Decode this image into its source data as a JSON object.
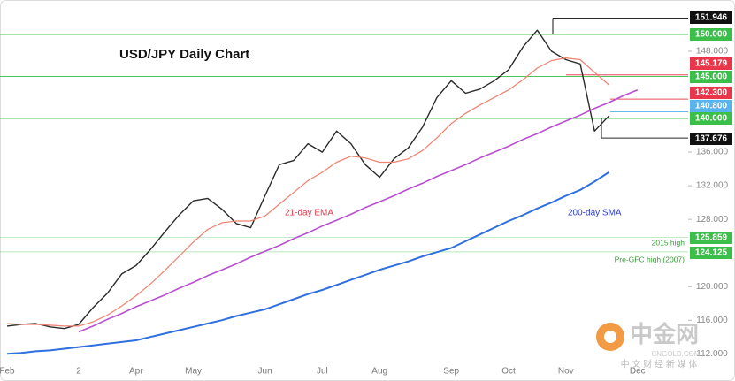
{
  "chart_data": {
    "type": "line",
    "title": "USD/JPY Daily Chart",
    "categories": [
      "Feb",
      null,
      null,
      null,
      null,
      "2",
      null,
      null,
      null,
      "Apr",
      null,
      null,
      null,
      "May",
      null,
      null,
      null,
      null,
      "Jun",
      null,
      null,
      null,
      "Jul",
      null,
      null,
      null,
      "Aug",
      null,
      null,
      null,
      null,
      "Sep",
      null,
      null,
      null,
      "Oct",
      null,
      null,
      null,
      "Nov",
      null,
      null,
      null,
      null,
      "Dec"
    ],
    "series": [
      {
        "name": "USD/JPY",
        "color": "#2b2b2b",
        "values": [
          115.3,
          115.5,
          115.6,
          115.2,
          115.0,
          115.5,
          117.5,
          119.2,
          121.5,
          122.5,
          124.4,
          126.5,
          128.5,
          130.2,
          130.5,
          129.2,
          127.5,
          127.0,
          130.8,
          134.5,
          135.0,
          137.0,
          136.0,
          138.5,
          137.0,
          134.5,
          133.0,
          135.2,
          136.5,
          139.0,
          142.5,
          144.5,
          143.0,
          143.5,
          144.5,
          145.8,
          148.5,
          150.5,
          148.0,
          147.0,
          146.5,
          138.5,
          140.3,
          null,
          null
        ]
      },
      {
        "name": "21-day EMA",
        "color": "#f08070",
        "values": [
          115.6,
          115.5,
          115.5,
          115.4,
          115.3,
          115.3,
          115.8,
          116.6,
          117.7,
          118.9,
          120.3,
          121.9,
          123.6,
          125.3,
          126.8,
          127.6,
          127.8,
          127.8,
          128.4,
          129.8,
          131.2,
          132.6,
          133.6,
          134.8,
          135.5,
          135.3,
          134.8,
          134.8,
          135.2,
          136.2,
          137.7,
          139.4,
          140.6,
          141.6,
          142.5,
          143.4,
          144.6,
          146.0,
          146.9,
          147.2,
          147.0,
          145.5,
          144.0,
          null,
          null
        ]
      },
      {
        "name": "200-day SMA",
        "color": "#2f6fe0",
        "values": [
          112.0,
          112.1,
          112.3,
          112.4,
          112.6,
          112.8,
          113.0,
          113.2,
          113.4,
          113.6,
          114.0,
          114.4,
          114.8,
          115.2,
          115.6,
          116.0,
          116.5,
          116.9,
          117.3,
          117.9,
          118.5,
          119.1,
          119.6,
          120.2,
          120.8,
          121.4,
          122.0,
          122.5,
          123.0,
          123.6,
          124.1,
          124.6,
          125.4,
          126.2,
          127.0,
          127.8,
          128.5,
          129.3,
          130.0,
          130.8,
          131.5,
          132.5,
          133.6,
          null,
          null
        ]
      },
      {
        "color": "#b84fd0",
        "values": [
          null,
          null,
          null,
          null,
          null,
          114.6,
          115.3,
          116.1,
          116.8,
          117.6,
          118.3,
          119.0,
          119.8,
          120.5,
          121.3,
          122.0,
          122.7,
          123.5,
          124.2,
          124.9,
          125.7,
          126.4,
          127.2,
          127.9,
          128.6,
          129.4,
          130.1,
          130.8,
          131.6,
          132.3,
          133.1,
          133.8,
          134.5,
          135.3,
          136.0,
          136.7,
          137.5,
          138.2,
          139.0,
          139.7,
          140.4,
          141.2,
          141.9,
          142.7,
          143.4
        ]
      }
    ],
    "levels": [
      {
        "value": 151.946,
        "label": "151.946",
        "color": "#111111"
      },
      {
        "value": 150.0,
        "label": "150.000",
        "color": "#3cbf4a"
      },
      {
        "value": 145.179,
        "label": "145.179",
        "color": "#e8374a"
      },
      {
        "value": 145.0,
        "label": "145.000",
        "color": "#3cbf4a"
      },
      {
        "value": 142.3,
        "label": "142.300",
        "color": "#e8374a"
      },
      {
        "value": 140.8,
        "label": "140.800",
        "color": "#5ab4ec"
      },
      {
        "value": 140.0,
        "label": "140.000",
        "color": "#3cbf4a"
      },
      {
        "value": 137.676,
        "label": "137.676",
        "color": "#111111"
      },
      {
        "value": 125.859,
        "label": "125.859",
        "color": "#3cbf4a",
        "note": "2015 high"
      },
      {
        "value": 124.125,
        "label": "124.125",
        "color": "#3cbf4a",
        "note": "Pre-GFC high (2007)"
      }
    ],
    "annotations": [
      "21-day EMA",
      "200-day SMA"
    ],
    "ylim": [
      111.5,
      154.1
    ],
    "yticks": [
      {
        "value": 112,
        "label": "112.000"
      },
      {
        "value": 116,
        "label": "116.000"
      },
      {
        "value": 120,
        "label": "120.000"
      },
      {
        "value": 128,
        "label": "128.000"
      },
      {
        "value": 132,
        "label": "132.000"
      },
      {
        "value": 136,
        "label": "136.000"
      },
      {
        "value": 148,
        "label": "148.000"
      }
    ],
    "grid": false,
    "watermark": {
      "title": "中金网",
      "site": "CNGOLD.COM",
      "tagline": "中 文 财 经 新 媒 体"
    }
  }
}
